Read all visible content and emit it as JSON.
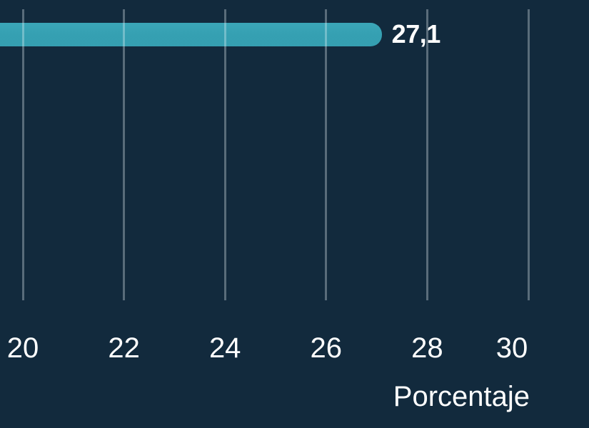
{
  "chart_data": {
    "type": "bar",
    "orientation": "horizontal",
    "title": "",
    "xlabel": "Porcentaje",
    "categories": [
      ""
    ],
    "values": [
      27.1
    ],
    "value_labels": [
      "27,1"
    ],
    "x_ticks": [
      20,
      22,
      24,
      26,
      28,
      30
    ],
    "x_tick_labels": [
      "20",
      "22",
      "24",
      "26",
      "28",
      "30"
    ],
    "xlim_visible": [
      19.5,
      31.2
    ],
    "grid": "vertical",
    "legend_position": "none"
  },
  "colors": {
    "background": "#122A3D",
    "bar": "#36A3B5",
    "bar_top": "#3CAABC",
    "gridline": "rgba(240,248,252,0.32)",
    "text": "#FFFFFF"
  }
}
